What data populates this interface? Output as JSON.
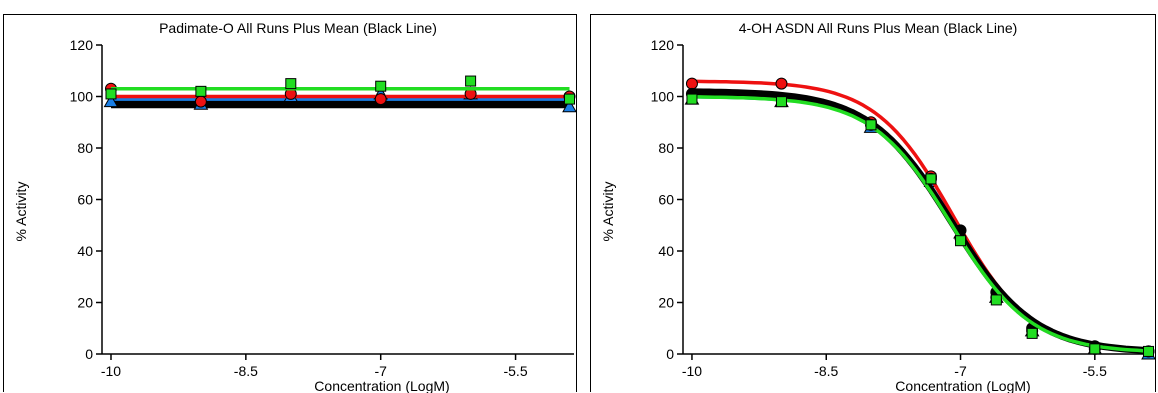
{
  "chart_data": [
    {
      "type": "line",
      "title": "Padimate-O All Runs Plus Mean  (Black Line)",
      "xlabel": "Concentration (LogM)",
      "ylabel": "% Activity",
      "xlim": [
        -10.1,
        -4.85
      ],
      "ylim": [
        0,
        120
      ],
      "xticks": [
        -10,
        -8.5,
        -7,
        -5.5
      ],
      "xtick_labels": [
        "-10",
        "-8.5",
        "-7",
        "-5.5"
      ],
      "yticks": [
        0,
        20,
        40,
        60,
        80,
        100,
        120
      ],
      "ytick_labels": [
        "0",
        "20",
        "40",
        "60",
        "80",
        "100",
        "120"
      ],
      "x": [
        -10,
        -9.32,
        -8.64,
        -7.96,
        -7.28,
        -6.6,
        -5.92,
        -5.24,
        -4.9
      ],
      "series": [
        {
          "role": "mean",
          "color": "#000000",
          "line_values": [
            97,
            97,
            97,
            97,
            97,
            97,
            97,
            97,
            97
          ],
          "marker": "none"
        },
        {
          "role": "run",
          "color": "#1a7fe6",
          "line_values": [
            99,
            99,
            99,
            99,
            99,
            99,
            99,
            99,
            99
          ],
          "marker": "triangle",
          "points_x": [
            -10,
            -9.0,
            -8.0,
            -7.0,
            -6.0,
            -4.9
          ],
          "points_y": [
            98,
            97,
            100,
            101,
            101,
            96
          ]
        },
        {
          "role": "run",
          "color": "#ee1111",
          "line_values": [
            100,
            100,
            100,
            100,
            100,
            100,
            100,
            100,
            100
          ],
          "marker": "circle",
          "points_x": [
            -10,
            -9.0,
            -8.0,
            -7.0,
            -6.0,
            -4.9
          ],
          "points_y": [
            103,
            98,
            101,
            99,
            101,
            100
          ]
        },
        {
          "role": "run",
          "color": "#22dd22",
          "line_values": [
            103,
            103,
            103,
            103,
            103,
            103,
            103,
            103,
            103
          ],
          "marker": "square",
          "points_x": [
            -10,
            -9.0,
            -8.0,
            -7.0,
            -6.0,
            -4.9
          ],
          "points_y": [
            101,
            102,
            105,
            104,
            106,
            99
          ]
        }
      ]
    },
    {
      "type": "line",
      "title": "4-OH ASDN  All Runs Plus Mean  (Black Line)",
      "xlabel": "Concentration (LogM)",
      "ylabel": "% Activity",
      "xlim": [
        -10.1,
        -4.85
      ],
      "ylim": [
        0,
        120
      ],
      "xticks": [
        -10,
        -8.5,
        -7,
        -5.5
      ],
      "xtick_labels": [
        "-10",
        "-8.5",
        "-7",
        "-5.5"
      ],
      "yticks": [
        0,
        20,
        40,
        60,
        80,
        100,
        120
      ],
      "ytick_labels": [
        "0",
        "20",
        "40",
        "60",
        "80",
        "100",
        "120"
      ],
      "curve": {
        "x_start": -10,
        "x_end": -4.9
      },
      "series": [
        {
          "role": "mean",
          "color": "#000000",
          "top": 102,
          "bottom": 0.5,
          "logec50": -7.1,
          "hill": 0.95,
          "marker": "circle",
          "points_x": [
            -10,
            -9.0,
            -8.0,
            -7.33,
            -7.0,
            -6.6,
            -6.2,
            -5.5,
            -4.9
          ],
          "points_y": [
            101,
            99,
            89,
            68,
            48,
            24,
            10,
            3,
            1
          ]
        },
        {
          "role": "run",
          "color": "#1a7fe6",
          "top": 100,
          "bottom": 0.0,
          "logec50": -7.05,
          "hill": 0.97,
          "marker": "triangle",
          "points_x": [
            -10,
            -9.0,
            -8.0,
            -7.33,
            -7.0,
            -6.6,
            -6.2,
            -5.5,
            -4.9
          ],
          "points_y": [
            99,
            98,
            88,
            67,
            47,
            22,
            9,
            2,
            0
          ]
        },
        {
          "role": "run",
          "color": "#ee1111",
          "top": 106,
          "bottom": 1.0,
          "logec50": -7.08,
          "hill": 1.0,
          "marker": "circle",
          "points_x": [
            -10,
            -9.0,
            -8.0,
            -7.33,
            -7.0,
            -6.6,
            -6.2,
            -5.5,
            -4.9
          ],
          "points_y": [
            105,
            105,
            90,
            69,
            45,
            22,
            9,
            2,
            1
          ]
        },
        {
          "role": "run",
          "color": "#22dd22",
          "top": 100,
          "bottom": 0.5,
          "logec50": -7.1,
          "hill": 0.98,
          "marker": "square",
          "points_x": [
            -10,
            -9.0,
            -8.0,
            -7.33,
            -7.0,
            -6.6,
            -6.2,
            -5.5,
            -4.9
          ],
          "points_y": [
            99,
            98,
            89,
            68,
            44,
            21,
            8,
            2,
            1
          ]
        }
      ]
    }
  ]
}
